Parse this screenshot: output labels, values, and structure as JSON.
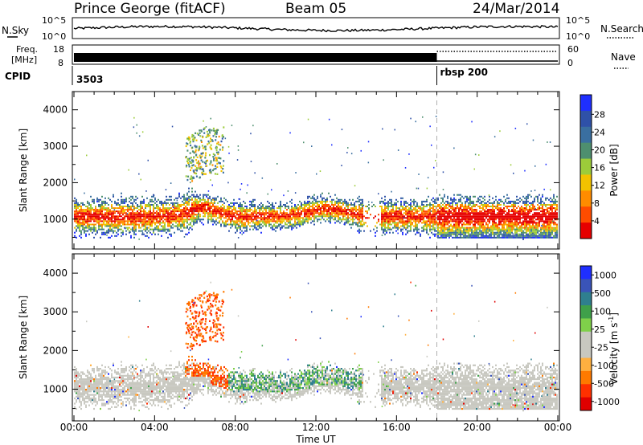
{
  "header": {
    "station": "Prince George (fitACF)",
    "beam": "Beam 05",
    "date": "24/Mar/2014"
  },
  "nsky_panel": {
    "left_label": "N.Sky",
    "right_label": "N.Search",
    "y_ticks_left": [
      "10^5",
      "10^0"
    ],
    "y_ticks_right": [
      "10^5",
      "10^0"
    ]
  },
  "freq_panel": {
    "label_line1": "Freq.",
    "label_line2": "[MHz]",
    "y_ticks_left": [
      "18",
      "8"
    ],
    "y_ticks_right": [
      "60",
      "0"
    ],
    "right_label": "Nave",
    "switch_time_hours": 18.0
  },
  "cpid_panel": {
    "label": "CPID",
    "segments": [
      {
        "text": "3503",
        "start_hours": 0
      },
      {
        "text": "rbsp 200",
        "start_hours": 18.0
      }
    ]
  },
  "colors": {
    "power_scale": [
      "#1f2fff",
      "#2f51a8",
      "#3a6fa0",
      "#4e8f6f",
      "#9ccc3a",
      "#f2c200",
      "#ff8c00",
      "#ff4c00",
      "#e60000"
    ],
    "velocity_scale": [
      "#1f2fff",
      "#3a54b8",
      "#2f7f8f",
      "#3fa04a",
      "#7fd04a",
      "#c8c8c0",
      "#c8c8c0",
      "#ffb040",
      "#ff7a00",
      "#ff3000",
      "#e00000"
    ],
    "ground_scatter": "#c8c8c0"
  },
  "chart_data": [
    {
      "type": "heatmap",
      "title": "",
      "xlabel": "",
      "ylabel": "Slant Range [km]",
      "xlim": [
        0,
        24
      ],
      "ylim": [
        180,
        4500
      ],
      "y_ticks": [
        1000,
        2000,
        3000,
        4000
      ],
      "y_tick_labels": [
        "1000",
        "2000",
        "3000",
        "4000"
      ],
      "colorbar": {
        "label": "Power [dB]",
        "tick_labels": [
          "4",
          "8",
          "12",
          "16",
          "20",
          "24",
          "28"
        ],
        "range": [
          0,
          30
        ]
      }
    },
    {
      "type": "heatmap",
      "title": "",
      "xlabel": "Time UT",
      "ylabel": "Slant Range [km]",
      "xlim": [
        0,
        24
      ],
      "ylim": [
        180,
        4500
      ],
      "x_ticks": [
        0,
        4,
        8,
        12,
        16,
        20,
        24
      ],
      "x_tick_labels": [
        "00:00",
        "04:00",
        "08:00",
        "12:00",
        "16:00",
        "20:00",
        "00:00"
      ],
      "y_ticks": [
        1000,
        2000,
        3000,
        4000
      ],
      "y_tick_labels": [
        "1000",
        "2000",
        "3000",
        "4000"
      ],
      "colorbar": {
        "label": "Velocity [m s",
        "label_sup": "-1",
        "label_end": "]",
        "tick_labels": [
          "1000",
          "500",
          "100",
          "25",
          "-25",
          "-100",
          "-500",
          "-1000"
        ]
      }
    }
  ]
}
